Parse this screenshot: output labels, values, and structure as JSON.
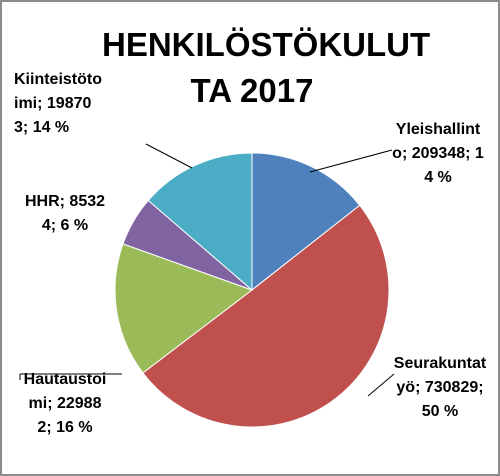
{
  "chart_data": {
    "type": "pie",
    "title": "HENKILÖSTÖKULUT TA 2017",
    "categories": [
      "Yleishallinto",
      "Seurakuntatyö",
      "Hautaustoimi",
      "HHR",
      "Kiinteistötoimi"
    ],
    "values": [
      209348,
      730829,
      229882,
      85324,
      198703
    ],
    "percent_labels": [
      "14 %",
      "50 %",
      "16 %",
      "6 %",
      "14 %"
    ],
    "label_separator": ";",
    "colors": [
      "#4f81bd",
      "#c0504d",
      "#9bbb59",
      "#8064a2",
      "#4bacc6"
    ],
    "start_angle": 0,
    "clockwise": true
  }
}
